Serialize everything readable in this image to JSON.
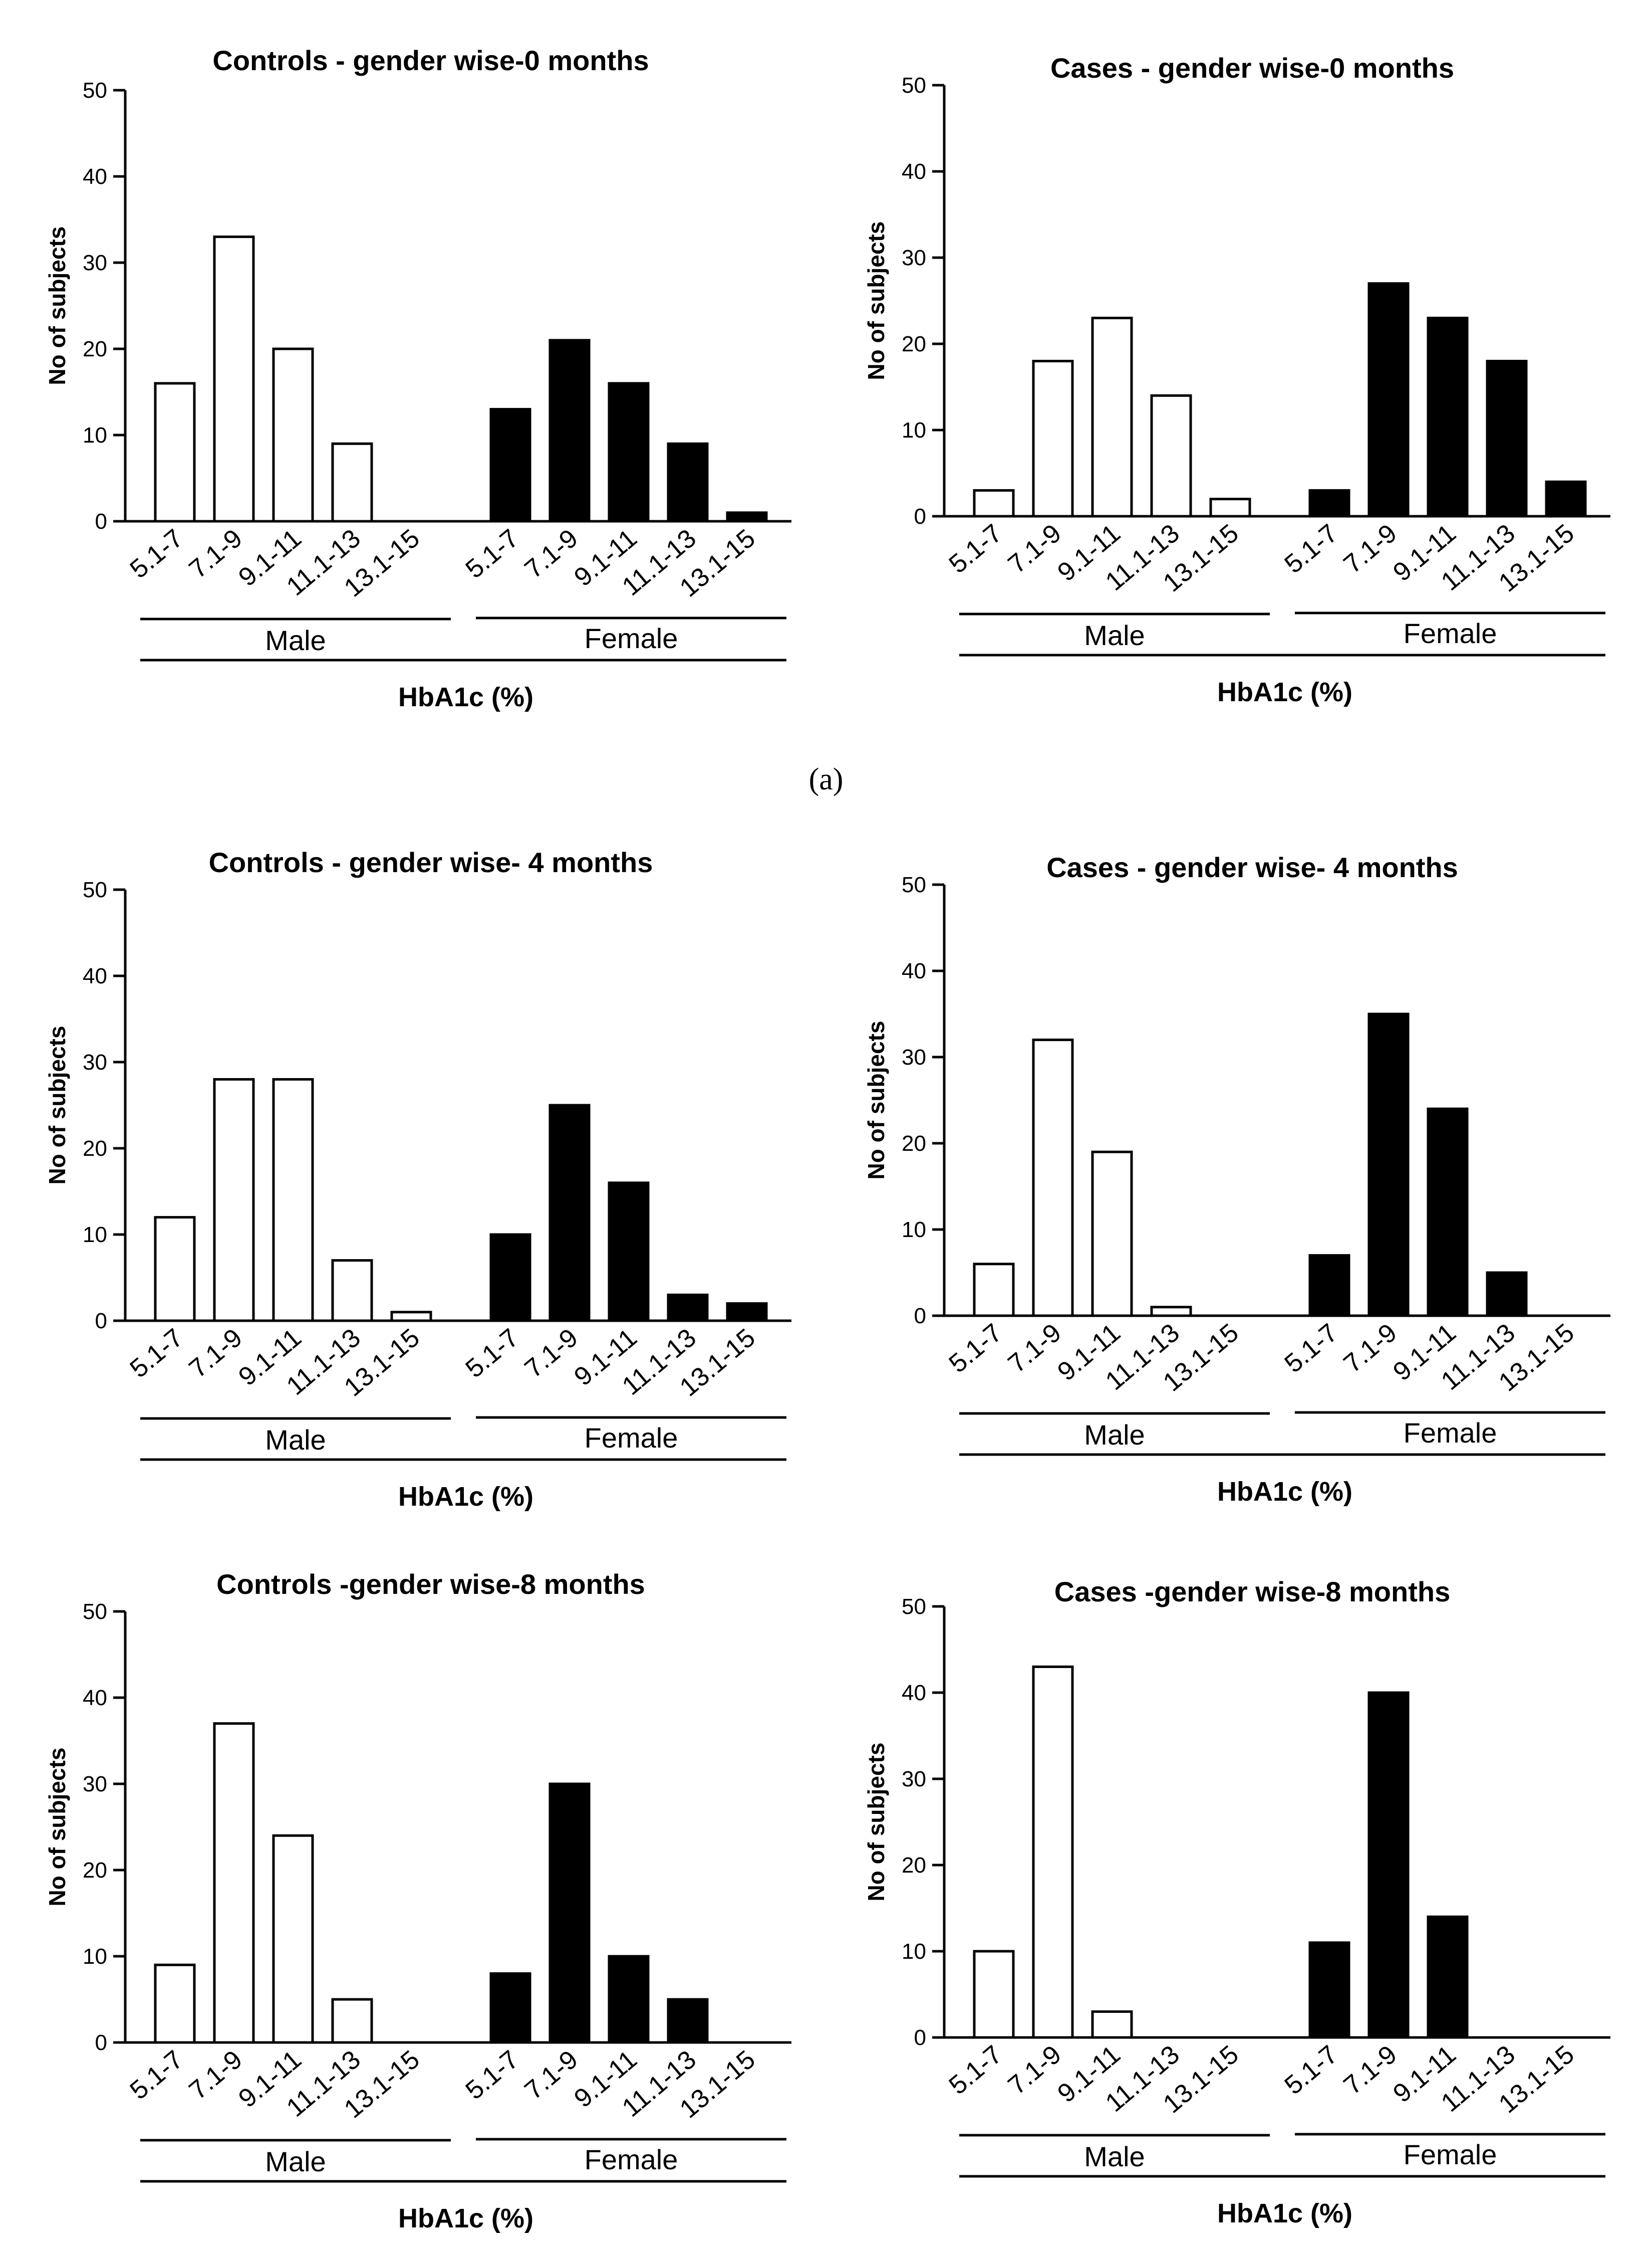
{
  "caption": "(a)",
  "colors": {
    "male": "#ffffff",
    "female": "#000000",
    "stroke": "#000000"
  },
  "chart_data": [
    {
      "type": "bar",
      "title": "Controls - gender wise-0 months",
      "ylabel": "No of subjects",
      "xlabel": "HbA1c (%)",
      "ylim": [
        0,
        50
      ],
      "yticks": [
        "0",
        "10",
        "20",
        "30",
        "40",
        "50"
      ],
      "groups": [
        "Male",
        "Female"
      ],
      "categories": [
        "5.1-7",
        "7.1-9",
        "9.1-11",
        "11.1-13",
        "13.1-15"
      ],
      "series": [
        {
          "name": "Male",
          "values": [
            16,
            33,
            20,
            9,
            0
          ]
        },
        {
          "name": "Female",
          "values": [
            13,
            21,
            16,
            9,
            1
          ]
        }
      ]
    },
    {
      "type": "bar",
      "title": "Cases - gender wise-0 months",
      "ylabel": "No of subjects",
      "xlabel": "HbA1c (%)",
      "ylim": [
        0,
        50
      ],
      "yticks": [
        "0",
        "10",
        "20",
        "30",
        "40",
        "50"
      ],
      "groups": [
        "Male",
        "Female"
      ],
      "categories": [
        "5.1-7",
        "7.1-9",
        "9.1-11",
        "11.1-13",
        "13.1-15"
      ],
      "series": [
        {
          "name": "Male",
          "values": [
            3,
            18,
            23,
            14,
            2
          ]
        },
        {
          "name": "Female",
          "values": [
            3,
            27,
            23,
            18,
            4
          ]
        }
      ]
    },
    {
      "type": "bar",
      "title": "Controls - gender wise- 4 months",
      "ylabel": "No of subjects",
      "xlabel": "HbA1c (%)",
      "ylim": [
        0,
        50
      ],
      "yticks": [
        "0",
        "10",
        "20",
        "30",
        "40",
        "50"
      ],
      "groups": [
        "Male",
        "Female"
      ],
      "categories": [
        "5.1-7",
        "7.1-9",
        "9.1-11",
        "11.1-13",
        "13.1-15"
      ],
      "series": [
        {
          "name": "Male",
          "values": [
            12,
            28,
            28,
            7,
            1
          ]
        },
        {
          "name": "Female",
          "values": [
            10,
            25,
            16,
            3,
            2
          ]
        }
      ]
    },
    {
      "type": "bar",
      "title": "Cases - gender wise- 4 months",
      "ylabel": "No of subjects",
      "xlabel": "HbA1c (%)",
      "ylim": [
        0,
        50
      ],
      "yticks": [
        "0",
        "10",
        "20",
        "30",
        "40",
        "50"
      ],
      "groups": [
        "Male",
        "Female"
      ],
      "categories": [
        "5.1-7",
        "7.1-9",
        "9.1-11",
        "11.1-13",
        "13.1-15"
      ],
      "series": [
        {
          "name": "Male",
          "values": [
            6,
            32,
            19,
            1,
            0
          ]
        },
        {
          "name": "Female",
          "values": [
            7,
            35,
            24,
            5,
            0
          ]
        }
      ]
    },
    {
      "type": "bar",
      "title": "Controls -gender wise-8 months",
      "ylabel": "No of subjects",
      "xlabel": "HbA1c (%)",
      "ylim": [
        0,
        50
      ],
      "yticks": [
        "0",
        "10",
        "20",
        "30",
        "40",
        "50"
      ],
      "groups": [
        "Male",
        "Female"
      ],
      "categories": [
        "5.1-7",
        "7.1-9",
        "9.1-11",
        "11.1-13",
        "13.1-15"
      ],
      "series": [
        {
          "name": "Male",
          "values": [
            9,
            37,
            24,
            5,
            0
          ]
        },
        {
          "name": "Female",
          "values": [
            8,
            30,
            10,
            5,
            0
          ]
        }
      ]
    },
    {
      "type": "bar",
      "title": "Cases -gender wise-8 months",
      "ylabel": "No of subjects",
      "xlabel": "HbA1c (%)",
      "ylim": [
        0,
        50
      ],
      "yticks": [
        "0",
        "10",
        "20",
        "30",
        "40",
        "50"
      ],
      "groups": [
        "Male",
        "Female"
      ],
      "categories": [
        "5.1-7",
        "7.1-9",
        "9.1-11",
        "11.1-13",
        "13.1-15"
      ],
      "series": [
        {
          "name": "Male",
          "values": [
            10,
            43,
            3,
            0,
            0
          ]
        },
        {
          "name": "Female",
          "values": [
            11,
            40,
            14,
            0,
            0
          ]
        }
      ]
    }
  ]
}
